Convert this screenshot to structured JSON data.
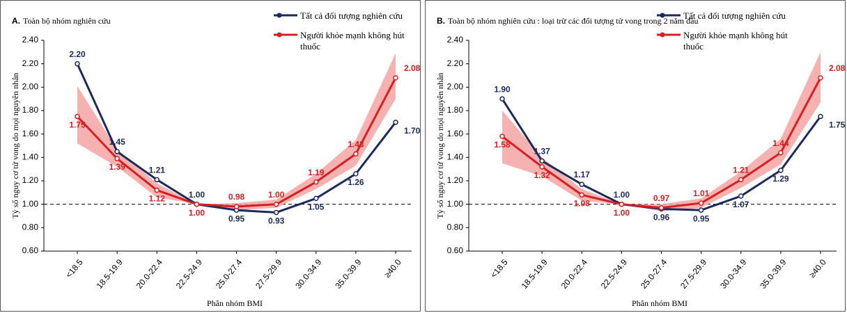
{
  "chart_data": [
    {
      "type": "line",
      "panel": "A.",
      "title": "Toàn bộ nhóm nghiên cứu",
      "x_label": "Phân nhóm BMI",
      "y_label": "Tỷ số nguy cơ tử vong do mọi nguyên nhân",
      "categories": [
        "<18.5",
        "18.5-19.9",
        "20.0-22.4",
        "22.5-24.9",
        "25.0-27.4",
        "27.5-29.9",
        "30.0-34.9",
        "35.0-39.9",
        "≥40.0"
      ],
      "ylim": [
        0.6,
        2.4
      ],
      "yticks": [
        {
          "value": 0.6,
          "label": "0.60"
        },
        {
          "value": 0.8,
          "label": "0.80"
        },
        {
          "value": 1,
          "label": "1.00"
        },
        {
          "value": 1.2,
          "label": "1.20"
        },
        {
          "value": 1.4,
          "label": "1.40"
        },
        {
          "value": 1.6,
          "label": "1.60"
        },
        {
          "value": 1.8,
          "label": "1.80"
        },
        {
          "value": 2,
          "label": "2.00"
        },
        {
          "value": 2.2,
          "label": "2.20"
        },
        {
          "value": 2.4,
          "label": "2.40"
        }
      ],
      "reference": 1,
      "legend": "upper right",
      "series": [
        {
          "name": "Tất cả đối tượng nghiên cứu",
          "color": "#1b2a5c",
          "values": [
            2.2,
            1.45,
            1.21,
            1,
            0.95,
            0.93,
            1.05,
            1.26,
            1.7
          ],
          "value_labels": [
            "2.20",
            "1.45",
            "1.21",
            "1.00",
            "0.95",
            "0.93",
            "1.05",
            "1.26",
            "1.70"
          ]
        },
        {
          "name": "Người khỏe mạnh không hút thuốc",
          "color": "#d42020",
          "band_color": "#f4a3a3",
          "values": [
            1.75,
            1.39,
            1.12,
            1,
            0.98,
            1,
            1.19,
            1.43,
            2.08
          ],
          "value_labels": [
            "1.75",
            "1.39",
            "1.12",
            "1.00",
            "0.98",
            "1.00",
            "1.19",
            "1.43",
            "2.08"
          ],
          "ci_upper": [
            2.01,
            1.47,
            1.18,
            1,
            1.01,
            1.04,
            1.26,
            1.55,
            2.29
          ],
          "ci_lower": [
            1.52,
            1.32,
            1.06,
            1,
            0.95,
            0.97,
            1.13,
            1.33,
            1.9
          ]
        }
      ]
    },
    {
      "type": "line",
      "panel": "B.",
      "title": "Toàn bộ nhóm nghiên cứu : loại trừ các đối tượng tử vong trong 2 năm đầu",
      "x_label": "Phân nhóm BMI",
      "y_label": "Tỷ số nguy cơ tử vong do mọi nguyên nhân",
      "categories": [
        "<18.5",
        "18.5-19.9",
        "20.0-22.4",
        "22.5-24.9",
        "25.0-27.4",
        "27.5-29.9",
        "30.0-34.9",
        "35.0-39.9",
        "≥40.0"
      ],
      "ylim": [
        0.6,
        2.4
      ],
      "yticks": [
        {
          "value": 0.6,
          "label": "0.60"
        },
        {
          "value": 0.8,
          "label": "0.80"
        },
        {
          "value": 1,
          "label": "1.00"
        },
        {
          "value": 1.2,
          "label": "1.20"
        },
        {
          "value": 1.4,
          "label": "1.40"
        },
        {
          "value": 1.6,
          "label": "1.60"
        },
        {
          "value": 1.8,
          "label": "1.80"
        },
        {
          "value": 2,
          "label": "2.00"
        },
        {
          "value": 2.2,
          "label": "2.20"
        },
        {
          "value": 2.4,
          "label": "2.40"
        }
      ],
      "reference": 1,
      "legend": "upper right",
      "series": [
        {
          "name": "Tất cả đối tượng nghiên cứu",
          "color": "#1b2a5c",
          "values": [
            1.9,
            1.37,
            1.17,
            1,
            0.96,
            0.95,
            1.07,
            1.29,
            1.75
          ],
          "value_labels": [
            "1.90",
            "1.37",
            "1.17",
            "1.00",
            "0.96",
            "0.95",
            "1.07",
            "1.29",
            "1.75"
          ]
        },
        {
          "name": "Người khỏe mạnh không hút thuốc",
          "color": "#d42020",
          "band_color": "#f4a3a3",
          "values": [
            1.58,
            1.32,
            1.08,
            1,
            0.97,
            1.01,
            1.21,
            1.44,
            2.08
          ],
          "value_labels": [
            "1.58",
            "1.32",
            "1.08",
            "1.00",
            "0.97",
            "1.01",
            "1.21",
            "1.44",
            "2.08"
          ],
          "ci_upper": [
            1.8,
            1.4,
            1.13,
            1,
            1,
            1.05,
            1.28,
            1.56,
            2.3
          ],
          "ci_lower": [
            1.35,
            1.24,
            1.03,
            1,
            0.94,
            0.97,
            1.14,
            1.34,
            1.87
          ]
        }
      ]
    }
  ]
}
